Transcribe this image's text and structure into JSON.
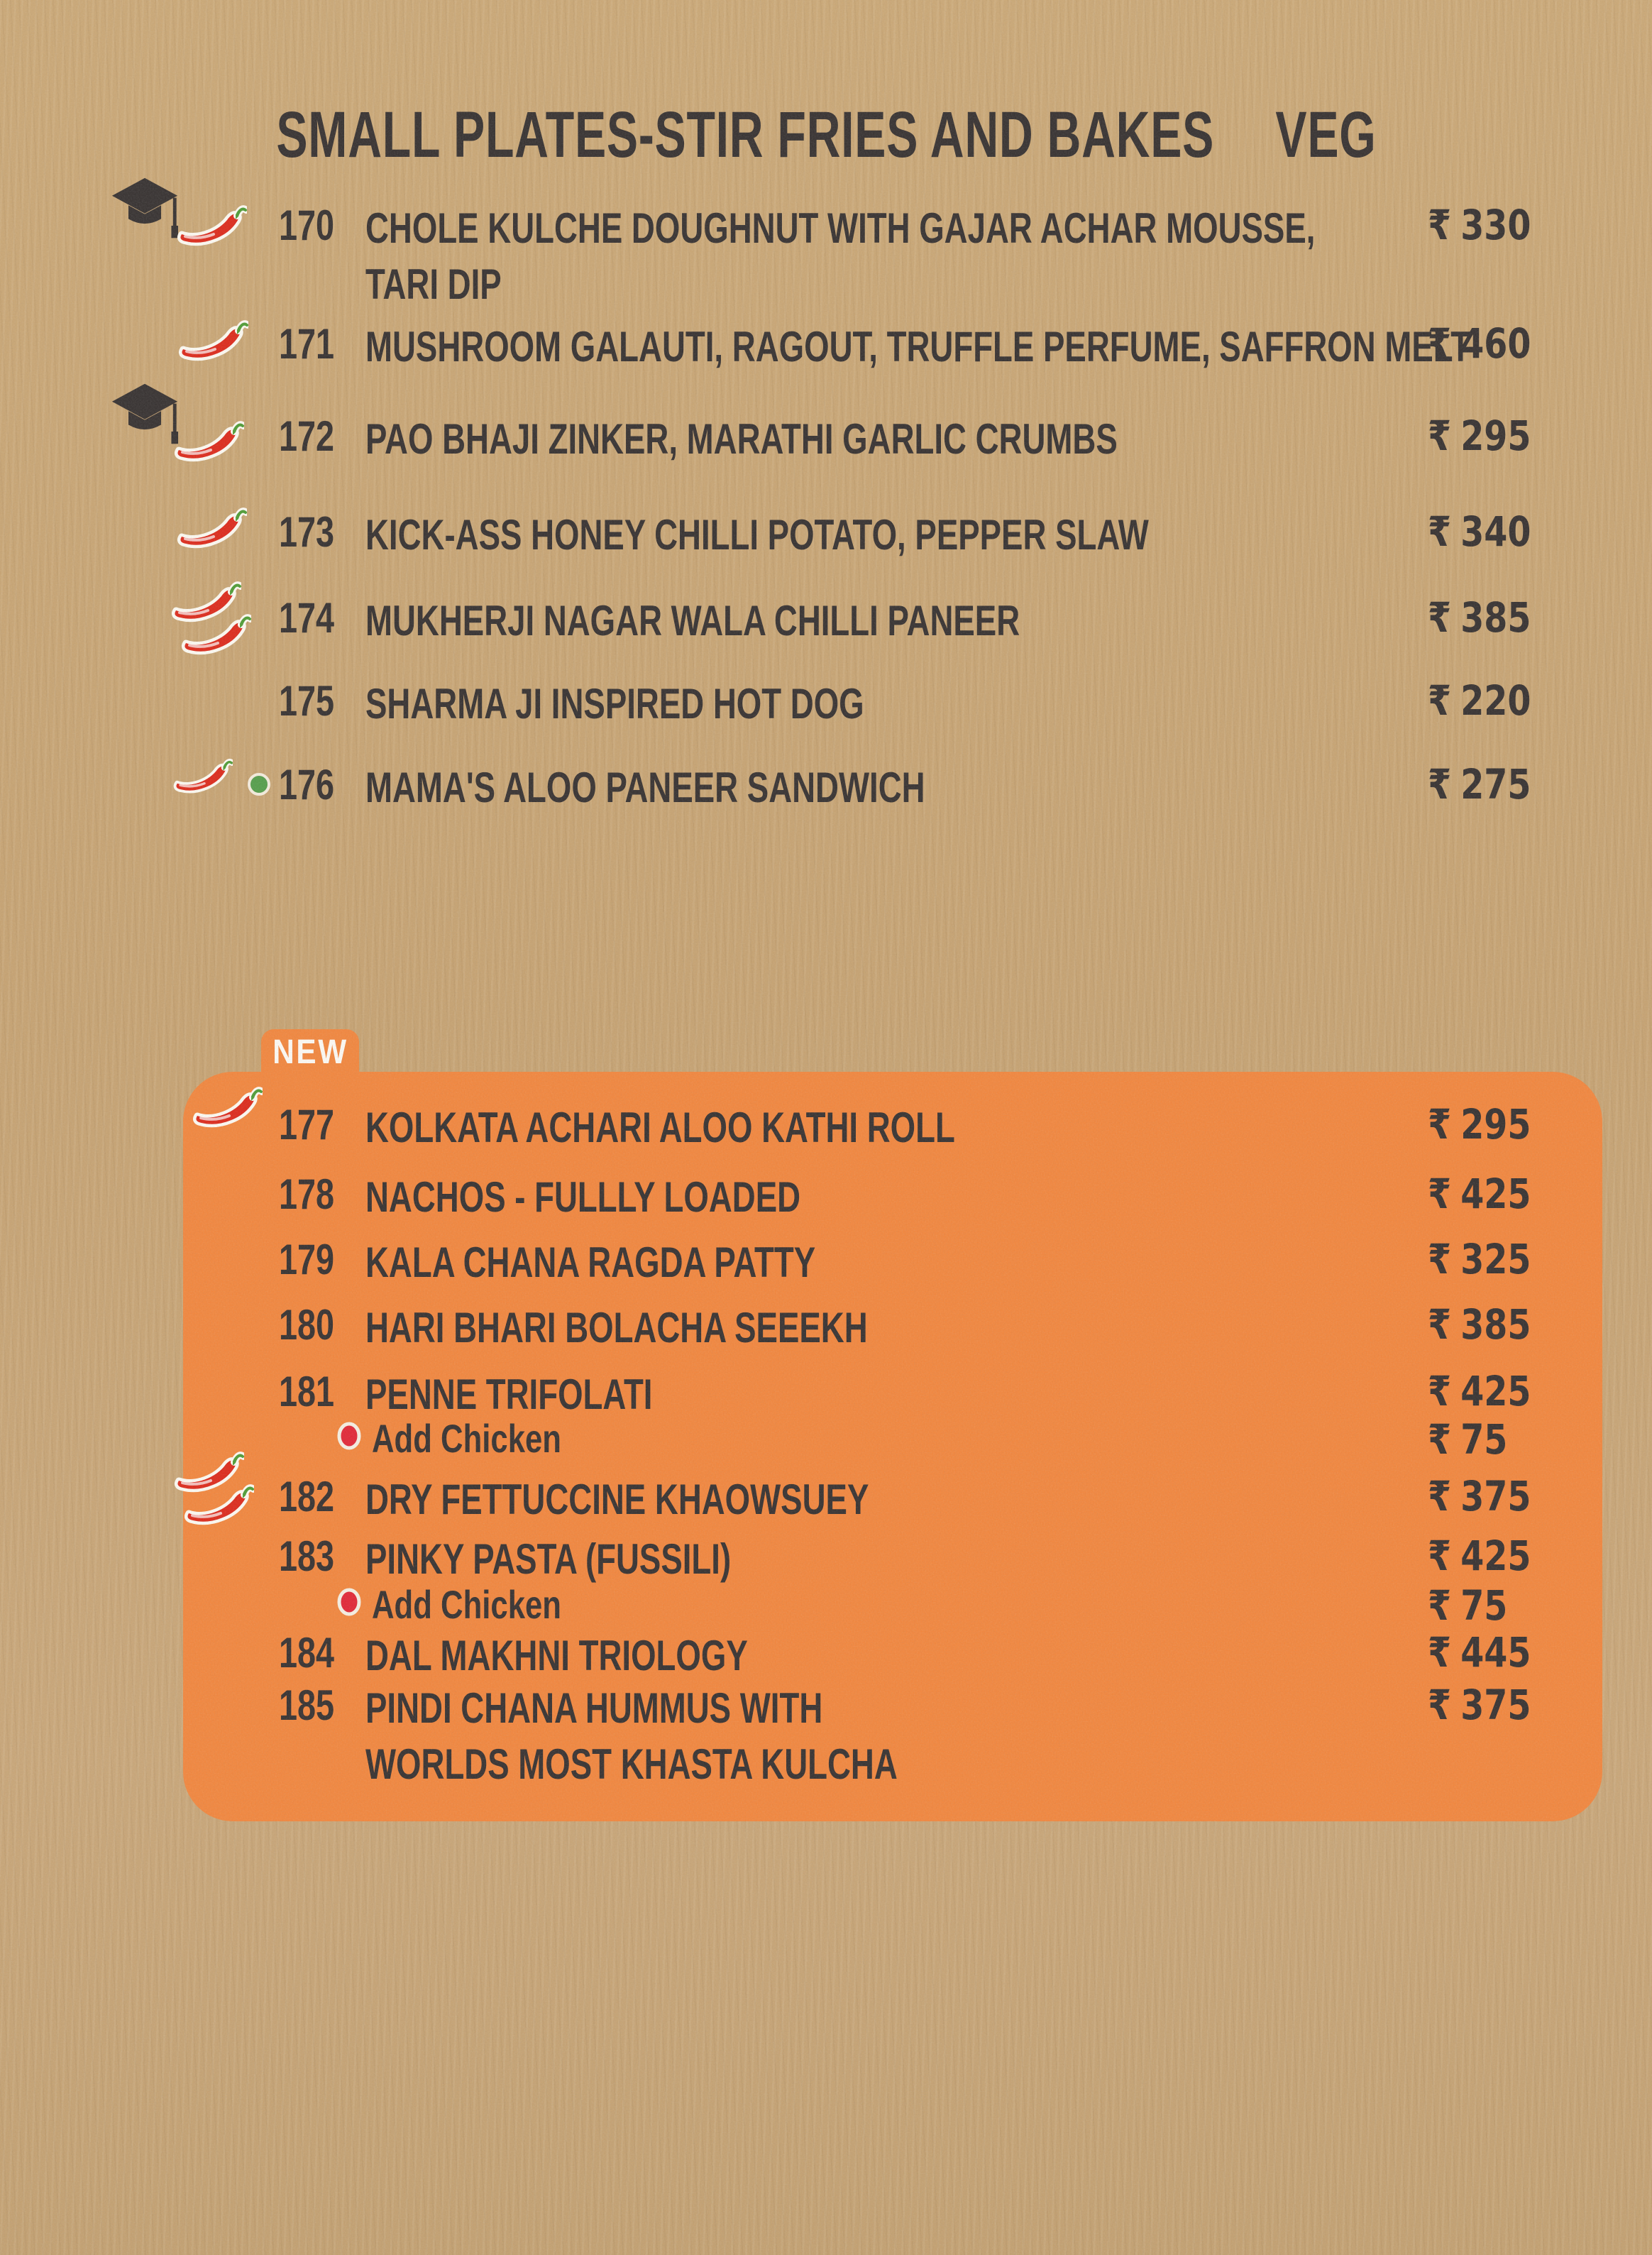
{
  "title": {
    "text": "SMALL PLATES-STIR FRIES AND BAKES",
    "diet_tag": "VEG"
  },
  "new_badge_label": "NEW",
  "currency_symbol": "₹",
  "sections": [
    {
      "id": "small-plates",
      "items": [
        {
          "num": "170",
          "name": "CHOLE KULCHE DOUGHNUT WITH GAJAR ACHAR MOUSSE,\nTARI DIP",
          "price": "330",
          "icons": [
            "graduation-cap",
            "chilli"
          ]
        },
        {
          "num": "171",
          "name": "MUSHROOM GALAUTI, RAGOUT, TRUFFLE PERFUME, SAFFRON MELT",
          "price": "460",
          "icons": [
            "chilli"
          ]
        },
        {
          "num": "172",
          "name": "PAO BHAJI ZINKER, MARATHI GARLIC CRUMBS",
          "price": "295",
          "icons": [
            "graduation-cap",
            "chilli"
          ]
        },
        {
          "num": "173",
          "name": "KICK-ASS HONEY CHILLI POTATO, PEPPER SLAW",
          "price": "340",
          "icons": [
            "chilli"
          ]
        },
        {
          "num": "174",
          "name": "MUKHERJI NAGAR WALA CHILLI PANEER",
          "price": "385",
          "icons": [
            "chilli",
            "chilli"
          ]
        },
        {
          "num": "175",
          "name": "SHARMA JI INSPIRED HOT DOG",
          "price": "220",
          "icons": []
        },
        {
          "num": "176",
          "name": "MAMA'S ALOO PANEER SANDWICH",
          "price": "275",
          "icons": [
            "chilli",
            "green-dot"
          ]
        }
      ]
    },
    {
      "id": "new-items",
      "items": [
        {
          "num": "177",
          "name": "KOLKATA ACHARI ALOO KATHI ROLL",
          "price": "295",
          "icons": [
            "chilli"
          ]
        },
        {
          "num": "178",
          "name": "NACHOS - FULLLY LOADED",
          "price": "425",
          "icons": []
        },
        {
          "num": "179",
          "name": "KALA CHANA RAGDA PATTY",
          "price": "325",
          "icons": []
        },
        {
          "num": "180",
          "name": "HARI BHARI BOLACHA SEEEKH",
          "price": "385",
          "icons": []
        },
        {
          "num": "181",
          "name": "PENNE TRIFOLATI",
          "price": "425",
          "icons": [],
          "addon": {
            "label": "Add Chicken",
            "price": "75"
          }
        },
        {
          "num": "182",
          "name": "DRY FETTUCCINE KHAOWSUEY",
          "price": "375",
          "icons": [
            "chilli",
            "chilli"
          ]
        },
        {
          "num": "183",
          "name": "PINKY PASTA (FUSSILI)",
          "price": "425",
          "icons": [],
          "addon": {
            "label": "Add Chicken",
            "price": "75"
          }
        },
        {
          "num": "184",
          "name": "DAL MAKHNI TRIOLOGY",
          "price": "445",
          "icons": []
        },
        {
          "num": "185",
          "name": "PINDI CHANA HUMMUS WITH\nWORLDS MOST KHASTA KULCHA",
          "price": "375",
          "icons": []
        }
      ]
    }
  ],
  "colors": {
    "panel_orange": "#f2863d",
    "paper": "#c6a271",
    "ink": "#363130",
    "chilli_red": "#dd2a1b",
    "stem_green": "#4f9c35",
    "veg_dot_green": "#559e4b",
    "addon_dot_red": "#e22736",
    "badge_text": "#fdfaf4"
  }
}
